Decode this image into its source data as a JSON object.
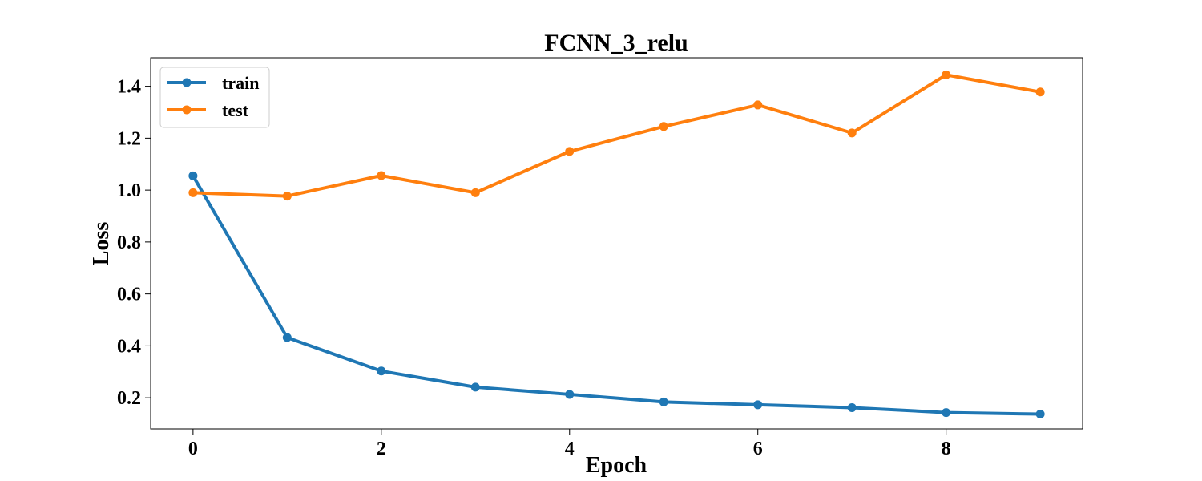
{
  "chart_data": {
    "type": "line",
    "title": "FCNN_3_relu",
    "xlabel": "Epoch",
    "ylabel": "Loss",
    "x": [
      0,
      1,
      2,
      3,
      4,
      5,
      6,
      7,
      8,
      9
    ],
    "xlim": [
      -0.45,
      9.45
    ],
    "ylim": [
      0.08,
      1.51
    ],
    "xticks": [
      0,
      2,
      4,
      6,
      8
    ],
    "xtick_labels": [
      "0",
      "2",
      "4",
      "6",
      "8"
    ],
    "yticks": [
      0.2,
      0.4,
      0.6,
      0.8,
      1.0,
      1.2,
      1.4
    ],
    "ytick_labels": [
      "0.2",
      "0.4",
      "0.6",
      "0.8",
      "1.0",
      "1.2",
      "1.4"
    ],
    "grid": false,
    "legend_position": "top-left",
    "series": [
      {
        "name": "train",
        "color": "#1f77b4",
        "marker": "circle",
        "values": [
          1.055,
          0.432,
          0.303,
          0.241,
          0.213,
          0.184,
          0.173,
          0.162,
          0.143,
          0.137
        ]
      },
      {
        "name": "test",
        "color": "#ff7f0e",
        "marker": "circle",
        "values": [
          0.99,
          0.977,
          1.056,
          0.99,
          1.149,
          1.245,
          1.328,
          1.22,
          1.444,
          1.378
        ]
      }
    ]
  }
}
